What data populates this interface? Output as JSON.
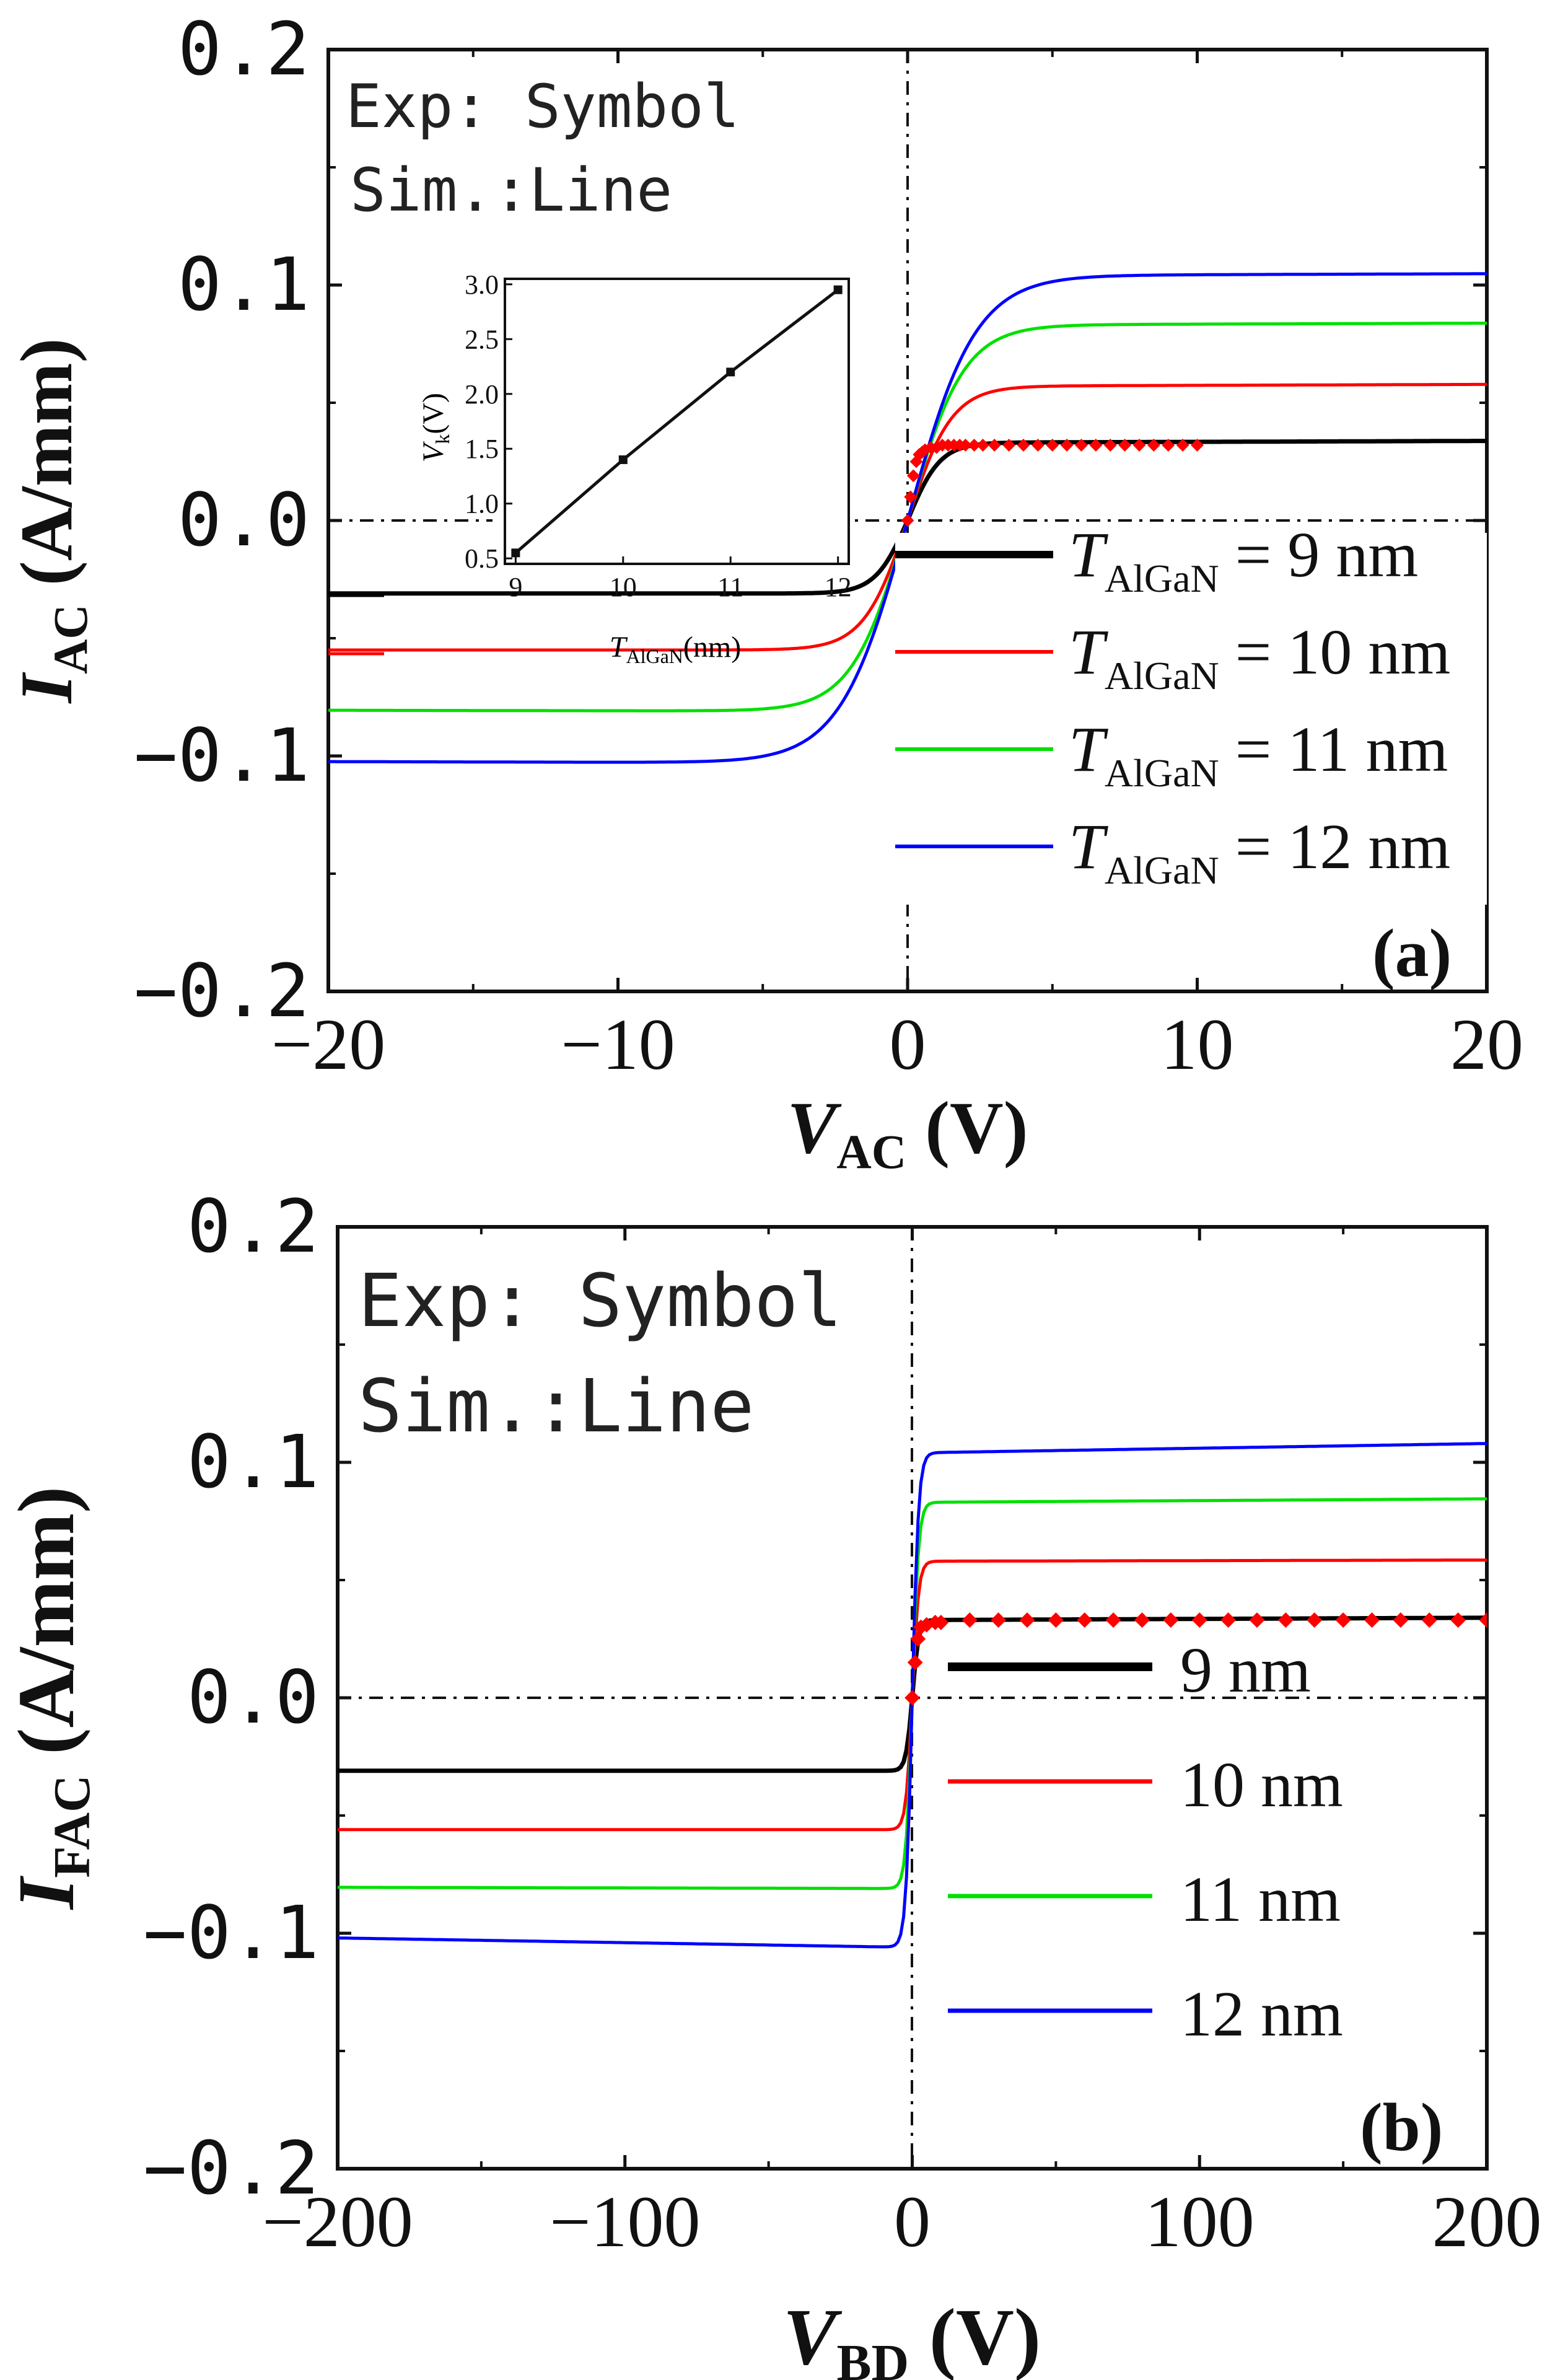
{
  "chart_data": [
    {
      "type": "line",
      "panel": "(a)",
      "xlabel": {
        "main": "V",
        "sub": "AC",
        "unit": " (V)"
      },
      "ylabel": {
        "main": "I",
        "sub": "AC",
        "unit": " (A/mm)"
      },
      "xlim": [
        -20,
        20
      ],
      "ylim": [
        -0.2,
        0.2
      ],
      "xticks": [
        -20,
        -10,
        0,
        10,
        20
      ],
      "xtick_labels": [
        "−20",
        "−10",
        "0",
        "10",
        "20"
      ],
      "yticks": [
        -0.2,
        -0.1,
        0.0,
        0.1,
        0.2
      ],
      "ytick_labels": [
        "−0.2",
        "−0.1",
        "0.0",
        "0.1",
        "0.2"
      ],
      "notes": [
        "Exp: Symbol",
        "Sim.:Line"
      ],
      "series": [
        {
          "name": "9 nm",
          "sub": "AlGaN",
          "legend_prefix": "T",
          "legend_suffix": " = 9 nm",
          "color": "#000000",
          "kink": 0.55,
          "upper": 0.033,
          "lower": -0.031,
          "slope_hi": 4e-05,
          "slope_lo": 0.0
        },
        {
          "name": "10 nm",
          "sub": "AlGaN",
          "legend_prefix": "T",
          "legend_suffix": " = 10 nm",
          "color": "#ff0000",
          "kink": 1.4,
          "upper": 0.057,
          "lower": -0.055,
          "slope_hi": 4e-05,
          "slope_lo": 0.0
        },
        {
          "name": "11 nm",
          "sub": "AlGaN",
          "legend_prefix": "T",
          "legend_suffix": " = 11 nm",
          "color": "#00e000",
          "kink": 2.2,
          "upper": 0.083,
          "lower": -0.081,
          "slope_hi": 4e-05,
          "slope_lo": 2e-05
        },
        {
          "name": "12 nm",
          "sub": "AlGaN",
          "legend_prefix": "T",
          "legend_suffix": " = 12 nm",
          "color": "#0000ff",
          "kink": 2.95,
          "upper": 0.104,
          "lower": -0.103,
          "slope_hi": 4e-05,
          "slope_lo": 3e-05
        }
      ],
      "experimental": {
        "color": "#ff0000",
        "x": [
          0.0,
          0.1,
          0.2,
          0.3,
          0.4,
          0.5,
          0.6,
          0.8,
          1.0,
          1.2,
          1.4,
          1.6,
          1.8,
          2.0,
          2.3,
          2.6,
          3.0,
          3.5,
          4.0,
          4.5,
          5.0,
          5.5,
          6.0,
          6.5,
          7.0,
          7.5,
          8.0,
          8.5,
          9.0,
          9.5,
          10.0
        ],
        "y": [
          0.0,
          0.01,
          0.019,
          0.025,
          0.028,
          0.029,
          0.03,
          0.031,
          0.031,
          0.032,
          0.032,
          0.032,
          0.032,
          0.032,
          0.032,
          0.032,
          0.032,
          0.032,
          0.032,
          0.032,
          0.032,
          0.032,
          0.032,
          0.032,
          0.032,
          0.032,
          0.032,
          0.032,
          0.032,
          0.032,
          0.032
        ]
      },
      "inset": {
        "xlabel": {
          "main": "T",
          "sub": "AlGaN",
          "unit": "(nm)"
        },
        "ylabel": {
          "main": "V",
          "sub": "k",
          "unit": "(V)"
        },
        "x": [
          9,
          10,
          11,
          12
        ],
        "y": [
          0.55,
          1.4,
          2.2,
          2.95
        ],
        "xlim": [
          8.9,
          12.1
        ],
        "ylim": [
          0.45,
          3.05
        ],
        "xticks": [
          9,
          10,
          11,
          12
        ],
        "xtick_labels": [
          "9",
          "10",
          "11",
          "12"
        ],
        "yticks": [
          0.5,
          1.0,
          1.5,
          2.0,
          2.5,
          3.0
        ],
        "ytick_labels": [
          "0.5",
          "1.0",
          "1.5",
          "2.0",
          "2.5",
          "3.0"
        ]
      }
    },
    {
      "type": "line",
      "panel": "(b)",
      "xlabel": {
        "main": "V",
        "sub": "BD",
        "unit": " (V)"
      },
      "ylabel": {
        "main": "I",
        "sub": "FAC",
        "unit": " (A/mm)"
      },
      "xlim": [
        -200,
        200
      ],
      "ylim": [
        -0.2,
        0.2
      ],
      "xticks": [
        -200,
        -100,
        0,
        100,
        200
      ],
      "xtick_labels": [
        "−200",
        "−100",
        "0",
        "100",
        "200"
      ],
      "yticks": [
        -0.2,
        -0.1,
        0.0,
        0.1,
        0.2
      ],
      "ytick_labels": [
        "−0.2",
        "−0.1",
        "0.0",
        "0.1",
        "0.2"
      ],
      "notes": [
        "Exp: Symbol",
        "Sim.:Line"
      ],
      "series": [
        {
          "name": "9 nm",
          "legend_label": "9 nm",
          "color": "#000000",
          "kink": 3,
          "upper": 0.033,
          "lower": -0.031,
          "slope_hi": 5e-06,
          "slope_lo": 0.0
        },
        {
          "name": "10 nm",
          "legend_label": "10 nm",
          "color": "#ff0000",
          "kink": 3,
          "upper": 0.058,
          "lower": -0.056,
          "slope_hi": 2.5e-06,
          "slope_lo": 0.0
        },
        {
          "name": "11 nm",
          "legend_label": "11 nm",
          "color": "#00e000",
          "kink": 3,
          "upper": 0.083,
          "lower": -0.081,
          "slope_hi": 7.5e-06,
          "slope_lo": 2.5e-06
        },
        {
          "name": "12 nm",
          "legend_label": "12 nm",
          "color": "#0000ff",
          "kink": 3,
          "upper": 0.104,
          "lower": -0.106,
          "slope_hi": 2e-05,
          "slope_lo": 2e-05
        }
      ],
      "experimental": {
        "color": "#ff0000",
        "x": [
          0,
          1,
          2,
          3,
          5,
          8,
          10,
          20,
          30,
          40,
          50,
          60,
          70,
          80,
          90,
          100,
          110,
          120,
          130,
          140,
          150,
          160,
          170,
          180,
          190,
          200
        ],
        "y": [
          0.0,
          0.015,
          0.025,
          0.03,
          0.031,
          0.032,
          0.032,
          0.033,
          0.033,
          0.033,
          0.033,
          0.033,
          0.033,
          0.033,
          0.033,
          0.033,
          0.033,
          0.033,
          0.033,
          0.033,
          0.033,
          0.033,
          0.033,
          0.033,
          0.033,
          0.033
        ]
      }
    }
  ]
}
